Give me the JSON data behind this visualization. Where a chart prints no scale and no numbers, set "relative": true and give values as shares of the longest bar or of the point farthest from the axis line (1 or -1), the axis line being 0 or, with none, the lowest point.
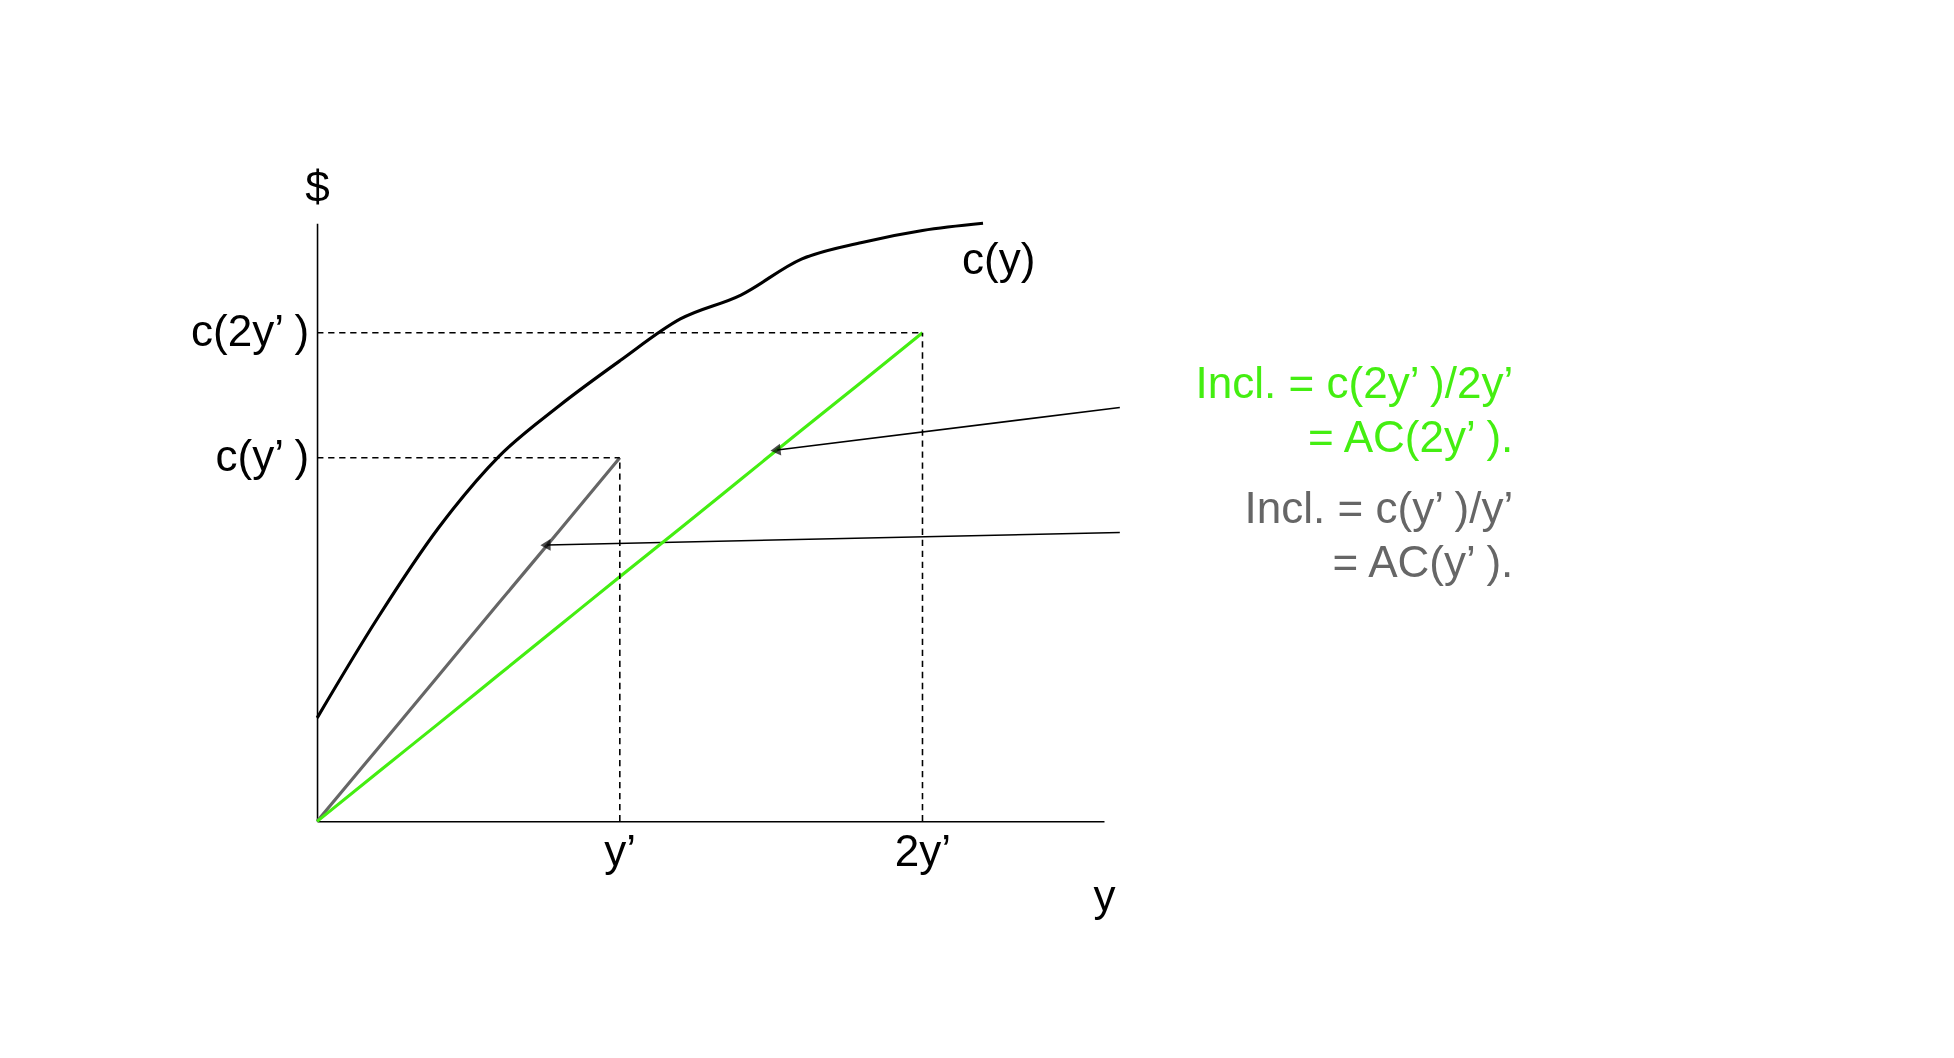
{
  "chart_data": {
    "type": "line",
    "relative": true,
    "xlabel": "y",
    "ylabel": "$",
    "categories": [
      null,
      null,
      null,
      null,
      null,
      "y’",
      null,
      null,
      null,
      null,
      "2y’",
      null,
      null,
      null
    ],
    "series": [
      {
        "name": "c(y)",
        "color": "#000000",
        "values": [
          0.173,
          0.34,
          0.49,
          0.61,
          0.695,
          0.77,
          0.84,
          0.88,
          0.94,
          0.968,
          0.988,
          1,
          null,
          null
        ]
      },
      {
        "name": "Incl. = c(y’ )/y’\n= AC(y’ ).",
        "color": "#666666",
        "values": [
          0,
          0.1216,
          0.243,
          0.365,
          0.486,
          0.608,
          null,
          null,
          null,
          null,
          null,
          null,
          null,
          null
        ]
      },
      {
        "name": "Incl. = c(2y’ )/2y’\n= AC(2y’ ).",
        "color": "#44ee11",
        "values": [
          0,
          0.0817,
          0.163,
          0.245,
          0.327,
          0.409,
          0.49,
          0.572,
          0.654,
          0.735,
          0.817,
          null,
          null,
          null
        ]
      }
    ],
    "ref_lines": [
      {
        "axis": "x",
        "value": "y’",
        "color": "#000000",
        "line_style": "dashed"
      },
      {
        "axis": "x",
        "value": "2y’",
        "color": "#000000",
        "line_style": "dashed"
      },
      {
        "axis": "y",
        "value": 0.608,
        "label": "c(y’ )",
        "color": "#000000",
        "line_style": "dashed"
      },
      {
        "axis": "y",
        "value": 0.817,
        "label": "c(2y’ )",
        "color": "#000000",
        "line_style": "dashed"
      }
    ]
  }
}
